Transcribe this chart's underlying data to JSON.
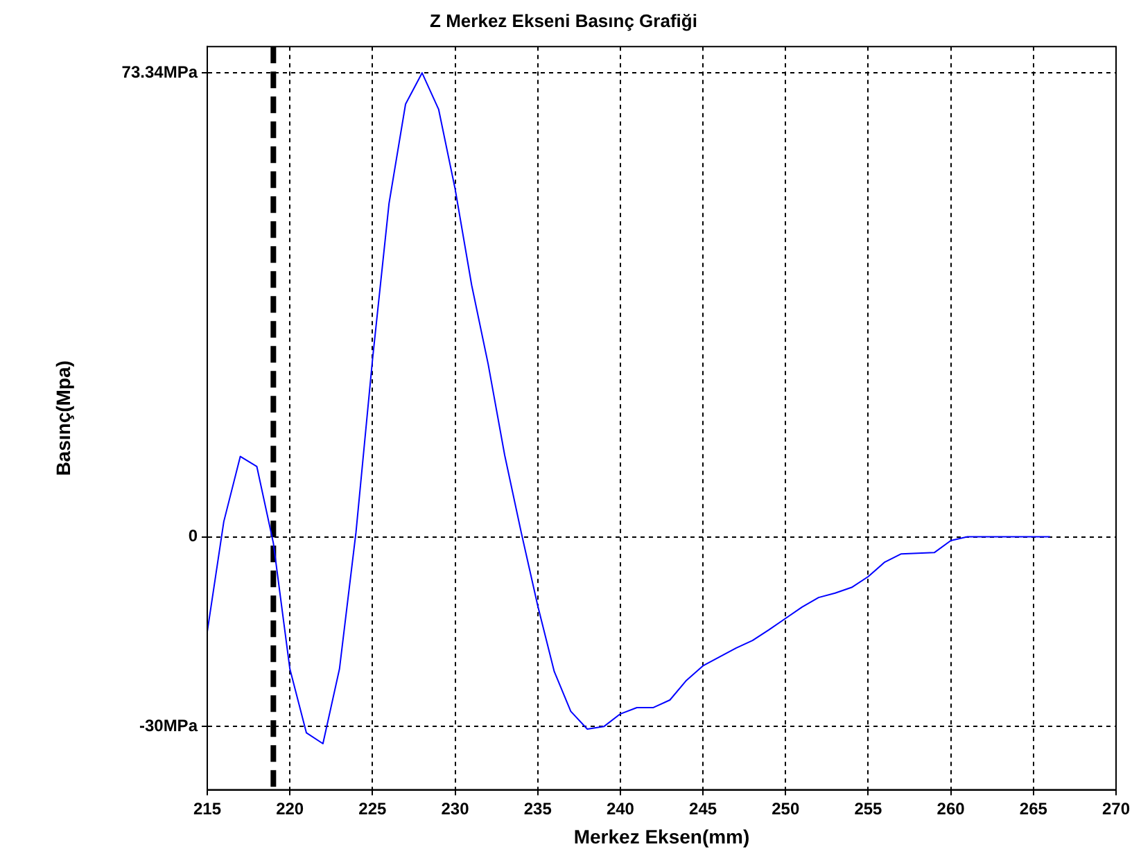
{
  "chart_data": {
    "type": "line",
    "title": "Z Merkez Ekseni Basınç Grafiği",
    "xlabel": "Merkez Eksen(mm)",
    "ylabel": "Basınç(Mpa)",
    "x": [
      215,
      216,
      217,
      218,
      219,
      220,
      221,
      222,
      223,
      224,
      225,
      226,
      227,
      228,
      229,
      230,
      231,
      232,
      233,
      234,
      235,
      236,
      237,
      238,
      239,
      240,
      241,
      242,
      243,
      244,
      245,
      246,
      247,
      248,
      249,
      250,
      251,
      252,
      253,
      254,
      255,
      256,
      257,
      258,
      259,
      260,
      261,
      262,
      263,
      264,
      265,
      266
    ],
    "series": [
      {
        "color": "#0000ff",
        "values": [
          -15,
          2.4,
          12.7,
          11.1,
          -1,
          -20.9,
          -31,
          -32.7,
          -20.9,
          0.7,
          28,
          52.7,
          68.4,
          73.34,
          67.6,
          55,
          39.8,
          27.3,
          12.9,
          0.7,
          -10.9,
          -21.3,
          -27.6,
          -30.4,
          -30,
          -28,
          -27,
          -27,
          -25.8,
          -22.7,
          -20.4,
          -19,
          -17.6,
          -16.4,
          -14.7,
          -12.9,
          -11.1,
          -9.6,
          -8.9,
          -8,
          -6.3,
          -4,
          -2.7,
          -2.6,
          -2.5,
          -0.6,
          0,
          0,
          0,
          0,
          0,
          0
        ]
      }
    ],
    "xlim": [
      215,
      270
    ],
    "xticks": [
      215,
      220,
      225,
      230,
      235,
      240,
      245,
      250,
      255,
      260,
      265,
      270
    ],
    "ylim": [
      -40,
      77.5
    ],
    "yticks": [
      {
        "value": -30,
        "label": "-30MPa"
      },
      0,
      {
        "value": 73.34,
        "label": "73.34MPa"
      }
    ],
    "grid": true,
    "legend": false,
    "marker": "none",
    "line_style": "solid",
    "ref_lines": [
      {
        "axis": "x",
        "value": 219,
        "color": "#000000",
        "line_style": "dashed"
      }
    ]
  }
}
